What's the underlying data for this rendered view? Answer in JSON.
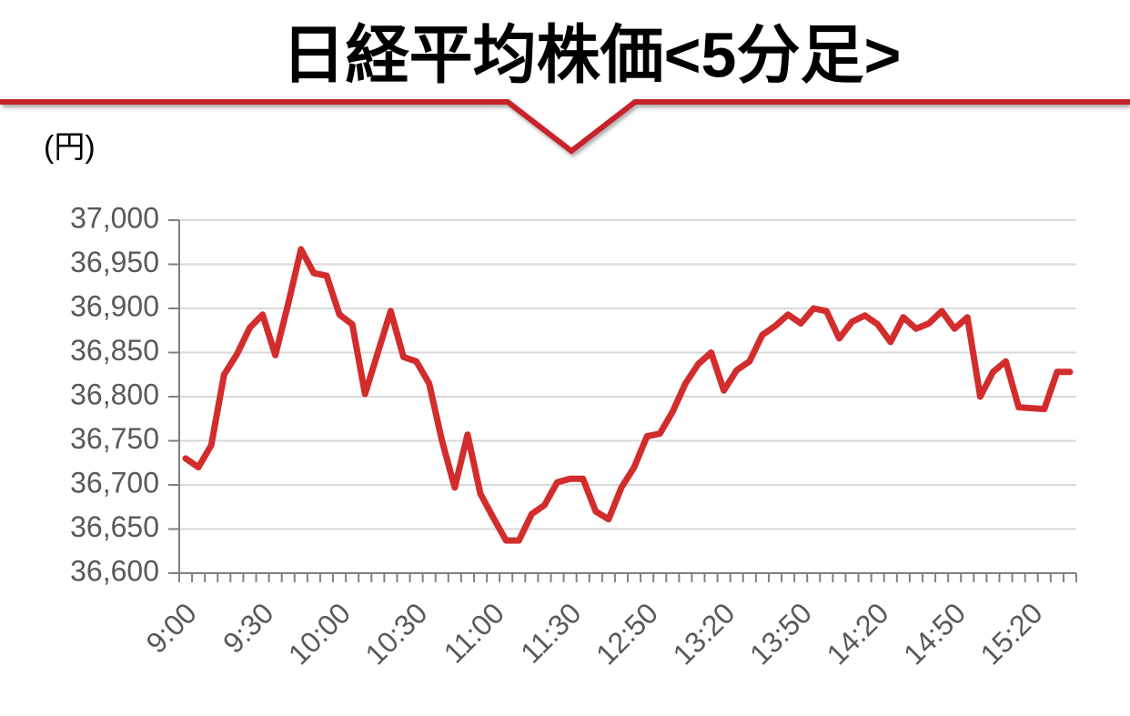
{
  "chart_data": {
    "type": "line",
    "title": "日経平均株価<5分足>",
    "y_label": "(円)",
    "categories": [
      "9:00",
      null,
      null,
      null,
      null,
      null,
      "9:30",
      null,
      null,
      null,
      null,
      null,
      "10:00",
      null,
      null,
      null,
      null,
      null,
      "10:30",
      null,
      null,
      null,
      null,
      null,
      "11:00",
      null,
      null,
      null,
      null,
      null,
      "11:30",
      null,
      null,
      null,
      null,
      null,
      "12:50",
      null,
      null,
      null,
      null,
      null,
      "13:20",
      null,
      null,
      null,
      null,
      null,
      "13:50",
      null,
      null,
      null,
      null,
      null,
      "14:20",
      null,
      null,
      null,
      null,
      null,
      "14:50",
      null,
      null,
      null,
      null,
      null,
      "15:20",
      null,
      null,
      null
    ],
    "series": [
      {
        "name": "日経平均株価",
        "color": "#d22c2c",
        "values": [
          36730,
          36720,
          36745,
          36825,
          36848,
          36878,
          36893,
          36847,
          36905,
          36967,
          36940,
          36937,
          36893,
          36882,
          36803,
          36850,
          36897,
          36845,
          36840,
          36815,
          36750,
          36697,
          36757,
          36690,
          36663,
          36637,
          36637,
          36667,
          36677,
          36703,
          36707,
          36707,
          36670,
          36661,
          36697,
          36720,
          36755,
          36758,
          36783,
          36815,
          36837,
          36850,
          36807,
          36830,
          36840,
          36870,
          36880,
          36893,
          36883,
          36900,
          36897,
          36866,
          36885,
          36892,
          36882,
          36862,
          36890,
          36877,
          36883,
          36897,
          36877,
          36890,
          36800,
          36828,
          36840,
          36788,
          36787,
          36786,
          36828,
          36828
        ]
      }
    ],
    "ylim": [
      36600,
      37000
    ],
    "yticks": [
      {
        "value": 36600,
        "label": "36,600"
      },
      {
        "value": 36650,
        "label": "36,650"
      },
      {
        "value": 36700,
        "label": "36,700"
      },
      {
        "value": 36750,
        "label": "36,750"
      },
      {
        "value": 36800,
        "label": "36,800"
      },
      {
        "value": 36850,
        "label": "36,850"
      },
      {
        "value": 36900,
        "label": "36,900"
      },
      {
        "value": 36950,
        "label": "36,950"
      },
      {
        "value": 37000,
        "label": "37,000"
      }
    ],
    "grid": true
  }
}
